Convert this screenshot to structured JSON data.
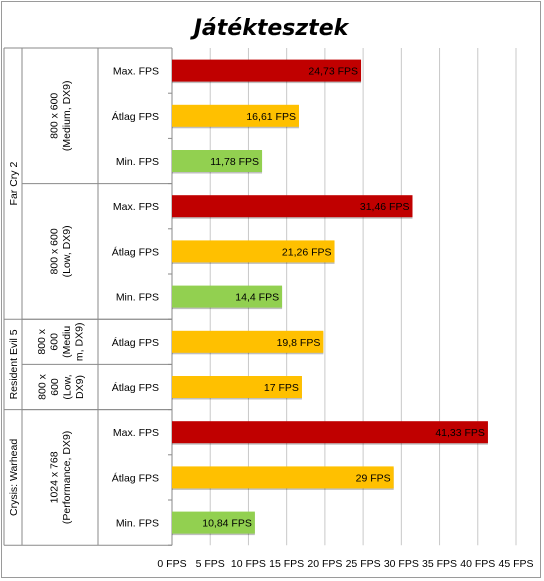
{
  "chart_data": {
    "type": "bar",
    "orientation": "horizontal",
    "title": "Játéktesztek",
    "xlabel": "",
    "ylabel": "",
    "xlim": [
      0,
      45
    ],
    "x_ticks": [
      0,
      5,
      10,
      15,
      20,
      25,
      30,
      35,
      40,
      45
    ],
    "x_tick_labels": [
      "0 FPS",
      "5 FPS",
      "10 FPS",
      "15 FPS",
      "20 FPS",
      "25 FPS",
      "30 FPS",
      "35 FPS",
      "40 FPS",
      "45 FPS"
    ],
    "grid": "vertical",
    "colors": {
      "Max. FPS": "#c00000",
      "Átlag FPS": "#ffc000",
      "Min. FPS": "#92d050"
    },
    "games": [
      {
        "name": "Far Cry 2",
        "settings": [
          {
            "label_lines": [
              "800 x 600",
              "(Medium, DX9)"
            ],
            "bars": [
              {
                "metric": "Max. FPS",
                "value": 24.73,
                "label": "24,73 FPS"
              },
              {
                "metric": "Átlag FPS",
                "value": 16.61,
                "label": "16,61 FPS"
              },
              {
                "metric": "Min. FPS",
                "value": 11.78,
                "label": "11,78 FPS"
              }
            ]
          },
          {
            "label_lines": [
              "800 x 600",
              "(Low, DX9)"
            ],
            "bars": [
              {
                "metric": "Max. FPS",
                "value": 31.46,
                "label": "31,46 FPS"
              },
              {
                "metric": "Átlag FPS",
                "value": 21.26,
                "label": "21,26 FPS"
              },
              {
                "metric": "Min. FPS",
                "value": 14.4,
                "label": "14,4 FPS"
              }
            ]
          }
        ]
      },
      {
        "name": "Resident Evil 5",
        "settings": [
          {
            "label_lines": [
              "800 x",
              "600",
              "(Mediu",
              "m, DX9)"
            ],
            "bars": [
              {
                "metric": "Átlag FPS",
                "value": 19.8,
                "label": "19,8 FPS"
              }
            ]
          },
          {
            "label_lines": [
              "800 x",
              "600",
              "(Low,",
              "DX9)"
            ],
            "bars": [
              {
                "metric": "Átlag FPS",
                "value": 17,
                "label": "17 FPS"
              }
            ]
          }
        ]
      },
      {
        "name": "Crysis: Warhead",
        "settings": [
          {
            "label_lines": [
              "1024 x 768",
              "(Performance, DX9)"
            ],
            "bars": [
              {
                "metric": "Max. FPS",
                "value": 41.33,
                "label": "41,33 FPS"
              },
              {
                "metric": "Átlag FPS",
                "value": 29,
                "label": "29 FPS"
              },
              {
                "metric": "Min. FPS",
                "value": 10.84,
                "label": "10,84 FPS"
              }
            ]
          }
        ]
      }
    ]
  }
}
